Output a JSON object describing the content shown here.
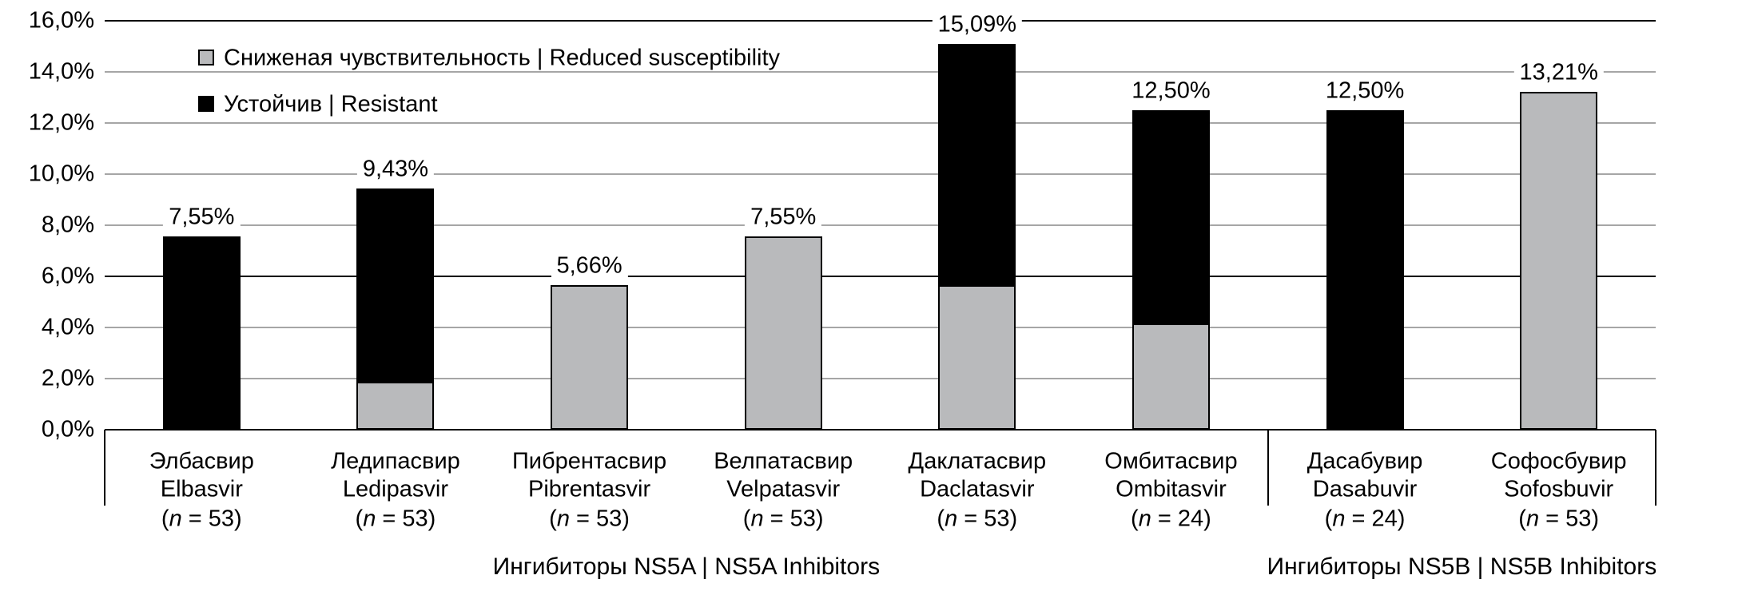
{
  "chart_data": {
    "type": "bar",
    "stacked": true,
    "grid": true,
    "legend_position": "top-left-inside",
    "y_axis": {
      "min": 0,
      "max": 16,
      "step": 2,
      "unit": "%",
      "tick_labels": [
        "0,0%",
        "2,0%",
        "4,0%",
        "6,0%",
        "8,0%",
        "10,0%",
        "12,0%",
        "14,0%",
        "16,0%"
      ],
      "dark_gridlines_at": [
        6,
        16
      ]
    },
    "categories": [
      {
        "label_ru": "Элбасвир",
        "label_en": "Elbasvir",
        "n": "53",
        "group": "NS5A"
      },
      {
        "label_ru": "Ледипасвир",
        "label_en": "Ledipasvir",
        "n": "53",
        "group": "NS5A"
      },
      {
        "label_ru": "Пибрентасвир",
        "label_en": "Pibrentasvir",
        "n": "53",
        "group": "NS5A"
      },
      {
        "label_ru": "Велпатасвир",
        "label_en": "Velpatasvir",
        "n": "53",
        "group": "NS5A"
      },
      {
        "label_ru": "Даклатасвир",
        "label_en": "Daclatasvir",
        "n": "53",
        "group": "NS5A"
      },
      {
        "label_ru": "Омбитасвир",
        "label_en": "Ombitasvir",
        "n": "24",
        "group": "NS5A"
      },
      {
        "label_ru": "Дасабувир",
        "label_en": "Dasabuvir",
        "n": "24",
        "group": "NS5B"
      },
      {
        "label_ru": "Софосбувир",
        "label_en": "Sofosbuvir",
        "n": "53",
        "group": "NS5B"
      }
    ],
    "series": [
      {
        "name": "Сниженая чувствительность | Reduced susceptibility",
        "color": "#b9babc",
        "values": [
          0,
          1.89,
          5.66,
          7.55,
          5.66,
          4.17,
          0,
          13.21
        ]
      },
      {
        "name": "Устойчив | Resistant",
        "color": "#000000",
        "values": [
          7.55,
          7.55,
          0,
          0,
          9.43,
          8.33,
          12.5,
          0
        ]
      }
    ],
    "total_labels": [
      "7,55%",
      "9,43%",
      "5,66%",
      "7,55%",
      "15,09%",
      "12,50%",
      "12,50%",
      "13,21%"
    ],
    "groups": [
      {
        "label": "Ингибиторы NS5A | NS5A Inhibitors",
        "span": 6
      },
      {
        "label": "Ингибиторы NS5B | NS5B Inhibitors",
        "span": 2
      }
    ]
  },
  "colors": {
    "gridline": "#a6a6a6",
    "dark_gridline": "#000000",
    "axis": "#000000",
    "reduced_fill": "#b9babc",
    "resistant_fill": "#000000",
    "background": "#ffffff"
  }
}
